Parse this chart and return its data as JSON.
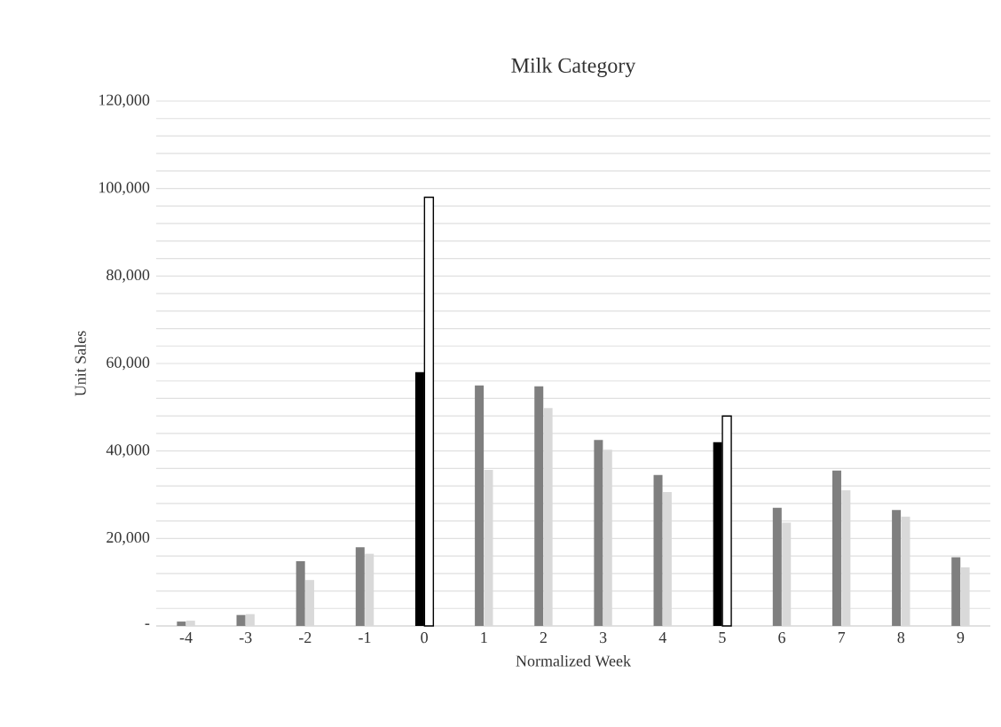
{
  "chart_data": {
    "type": "bar",
    "title": "Milk Category",
    "xlabel": "Normalized Week",
    "ylabel": "Unit Sales",
    "categories": [
      "-4",
      "-3",
      "-2",
      "-1",
      "0",
      "1",
      "2",
      "3",
      "4",
      "5",
      "6",
      "7",
      "8",
      "9"
    ],
    "series": [
      {
        "colors": [
          "#7f7f7f",
          "#7f7f7f",
          "#7f7f7f",
          "#7f7f7f",
          "#000000",
          "#7f7f7f",
          "#7f7f7f",
          "#7f7f7f",
          "#7f7f7f",
          "#000000",
          "#7f7f7f",
          "#7f7f7f",
          "#7f7f7f",
          "#7f7f7f"
        ],
        "values": [
          1000,
          2500,
          14800,
          18000,
          58000,
          55000,
          54800,
          42500,
          34500,
          42000,
          27000,
          35500,
          26500,
          15700
        ]
      },
      {
        "colors": [
          "#d9d9d9",
          "#d9d9d9",
          "#d9d9d9",
          "#d9d9d9",
          "#ffffff",
          "#d9d9d9",
          "#d9d9d9",
          "#d9d9d9",
          "#d9d9d9",
          "#ffffff",
          "#d9d9d9",
          "#d9d9d9",
          "#d9d9d9",
          "#d9d9d9"
        ],
        "values": [
          1200,
          2700,
          10500,
          16500,
          98000,
          35700,
          49800,
          40300,
          30600,
          48000,
          23600,
          31000,
          25000,
          13400
        ]
      }
    ],
    "ylim": [
      0,
      120000
    ],
    "yticks": [
      {
        "value": 0,
        "label": "-"
      },
      {
        "value": 4000,
        "label": null
      },
      {
        "value": 8000,
        "label": null
      },
      {
        "value": 12000,
        "label": null
      },
      {
        "value": 16000,
        "label": null
      },
      {
        "value": 20000,
        "label": "20,000"
      },
      {
        "value": 24000,
        "label": null
      },
      {
        "value": 28000,
        "label": null
      },
      {
        "value": 32000,
        "label": null
      },
      {
        "value": 36000,
        "label": null
      },
      {
        "value": 40000,
        "label": "40,000"
      },
      {
        "value": 44000,
        "label": null
      },
      {
        "value": 48000,
        "label": null
      },
      {
        "value": 52000,
        "label": null
      },
      {
        "value": 56000,
        "label": null
      },
      {
        "value": 60000,
        "label": "60,000"
      },
      {
        "value": 64000,
        "label": null
      },
      {
        "value": 68000,
        "label": null
      },
      {
        "value": 72000,
        "label": null
      },
      {
        "value": 76000,
        "label": null
      },
      {
        "value": 80000,
        "label": "80,000"
      },
      {
        "value": 84000,
        "label": null
      },
      {
        "value": 88000,
        "label": null
      },
      {
        "value": 92000,
        "label": null
      },
      {
        "value": 96000,
        "label": null
      },
      {
        "value": 100000,
        "label": "100,000"
      },
      {
        "value": 104000,
        "label": null
      },
      {
        "value": 108000,
        "label": null
      },
      {
        "value": 112000,
        "label": null
      },
      {
        "value": 116000,
        "label": null
      },
      {
        "value": 120000,
        "label": "120,000"
      }
    ],
    "grid": "y"
  }
}
